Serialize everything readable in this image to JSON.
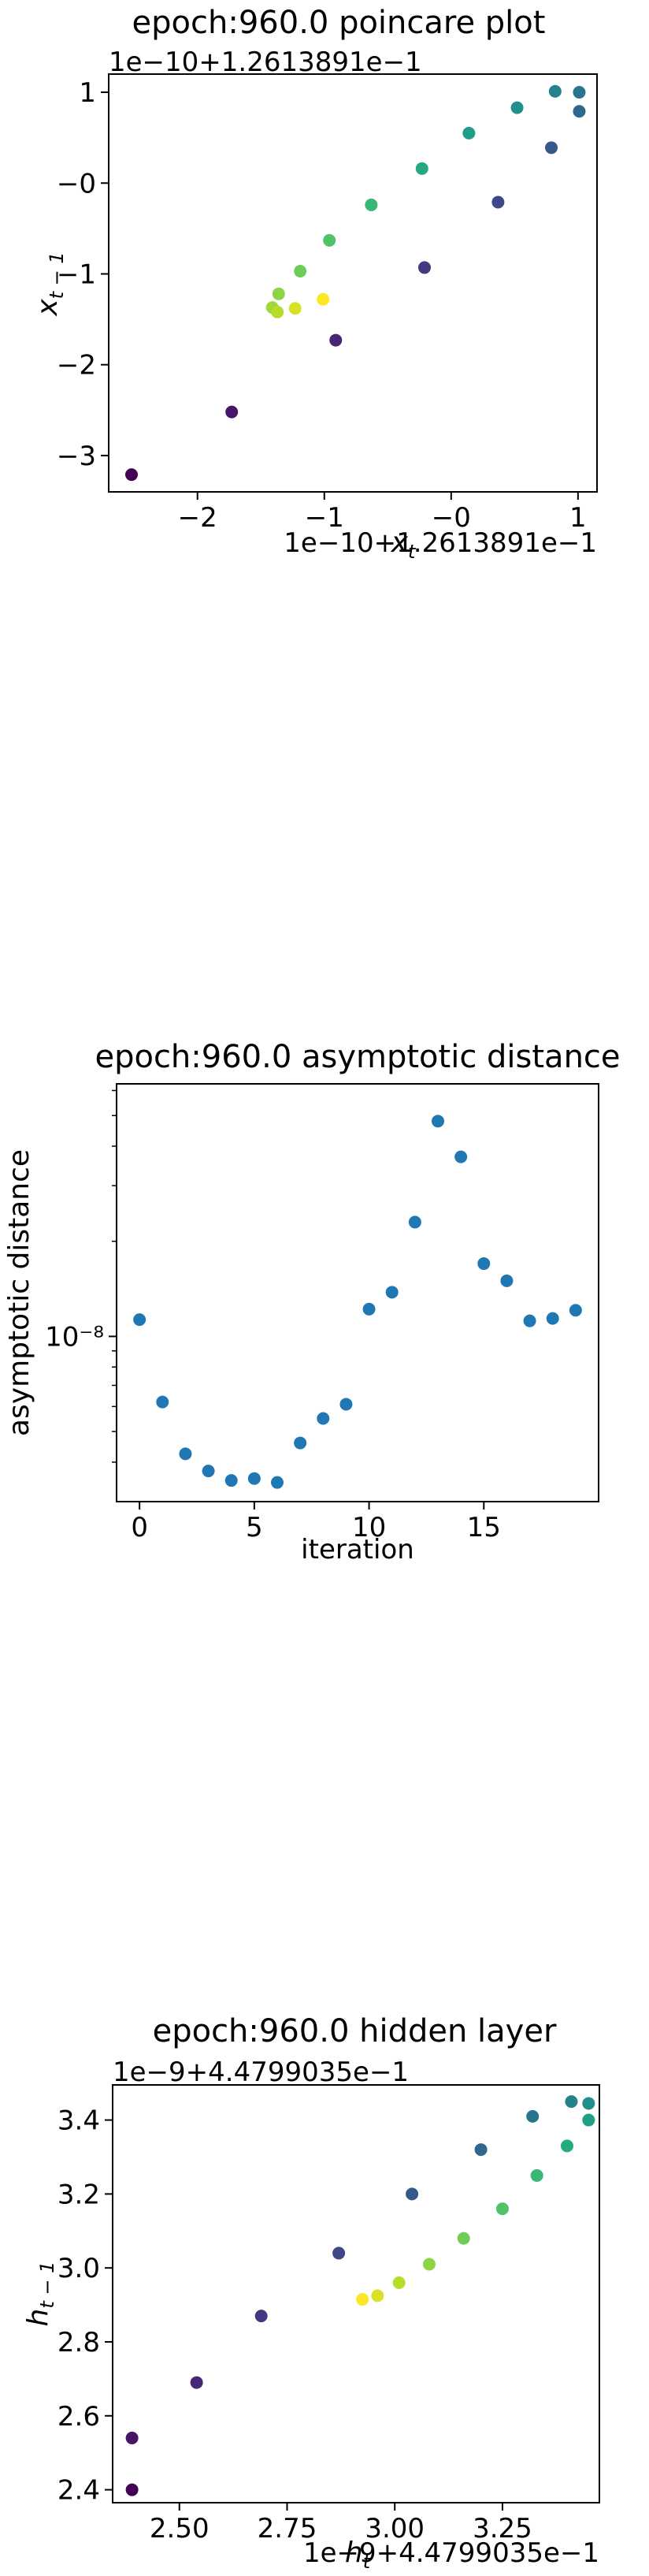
{
  "chart_data": [
    {
      "type": "scatter",
      "title": "epoch:960.0 poincare plot",
      "xlabel": "x_t",
      "ylabel": "x_{t-1}",
      "x_offset_label": "1e−10+1.2613891e−1",
      "y_offset_label": "1e−10+1.2613891e−1",
      "xlim": [
        -2.7,
        1.15
      ],
      "ylim": [
        -3.4,
        1.2
      ],
      "xticks": [
        -2,
        -1,
        0,
        1
      ],
      "xtick_labels": [
        "−2",
        "−1",
        "−0",
        "1"
      ],
      "yticks": [
        -3,
        -2,
        -1,
        0,
        1
      ],
      "ytick_labels": [
        "−3",
        "−2",
        "−1",
        "−0",
        "1"
      ],
      "colormap": "viridis",
      "grid": false,
      "points": [
        {
          "x": -2.52,
          "y": -3.21,
          "c": 0.0
        },
        {
          "x": -1.73,
          "y": -2.52,
          "c": 0.06
        },
        {
          "x": -0.91,
          "y": -1.73,
          "c": 0.11
        },
        {
          "x": -0.21,
          "y": -0.93,
          "c": 0.17
        },
        {
          "x": 0.37,
          "y": -0.21,
          "c": 0.22
        },
        {
          "x": 0.79,
          "y": 0.39,
          "c": 0.28
        },
        {
          "x": 1.01,
          "y": 0.79,
          "c": 0.33
        },
        {
          "x": 1.01,
          "y": 1.0,
          "c": 0.39
        },
        {
          "x": 0.82,
          "y": 1.01,
          "c": 0.44
        },
        {
          "x": 0.52,
          "y": 0.83,
          "c": 0.5
        },
        {
          "x": 0.14,
          "y": 0.55,
          "c": 0.56
        },
        {
          "x": -0.23,
          "y": 0.16,
          "c": 0.61
        },
        {
          "x": -0.63,
          "y": -0.24,
          "c": 0.67
        },
        {
          "x": -0.96,
          "y": -0.63,
          "c": 0.72
        },
        {
          "x": -1.19,
          "y": -0.97,
          "c": 0.78
        },
        {
          "x": -1.36,
          "y": -1.22,
          "c": 0.83
        },
        {
          "x": -1.41,
          "y": -1.37,
          "c": 0.86
        },
        {
          "x": -1.37,
          "y": -1.42,
          "c": 0.89
        },
        {
          "x": -1.23,
          "y": -1.38,
          "c": 0.94
        },
        {
          "x": -1.01,
          "y": -1.28,
          "c": 1.0
        }
      ]
    },
    {
      "type": "scatter",
      "title": "epoch:960.0 asymptotic distance",
      "xlabel": "iteration",
      "ylabel": "asymptotic distance",
      "yscale": "log",
      "xlim": [
        -1,
        20
      ],
      "ylim": [
        3e-09,
        6.3e-08
      ],
      "xticks": [
        0,
        5,
        10,
        15
      ],
      "xtick_labels": [
        "0",
        "5",
        "10",
        "15"
      ],
      "yticks": [
        1e-08
      ],
      "ytick_labels": [
        "10⁻⁸"
      ],
      "minor_yticks": [
        4e-09,
        5e-09,
        6e-09,
        7e-09,
        8e-09,
        9e-09,
        2e-08,
        3e-08,
        4e-08,
        5e-08,
        6e-08
      ],
      "color": "#1f77b4",
      "grid": false,
      "x": [
        0,
        1,
        2,
        3,
        4,
        5,
        6,
        7,
        8,
        9,
        10,
        11,
        12,
        13,
        14,
        15,
        16,
        17,
        18,
        19
      ],
      "y": [
        1.13e-08,
        6.2e-09,
        4.25e-09,
        3.75e-09,
        3.5e-09,
        3.55e-09,
        3.45e-09,
        4.6e-09,
        5.5e-09,
        6.1e-09,
        1.22e-08,
        1.38e-08,
        2.3e-08,
        4.8e-08,
        3.7e-08,
        1.7e-08,
        1.5e-08,
        1.12e-08,
        1.14e-08,
        1.21e-08
      ]
    },
    {
      "type": "scatter",
      "title": "epoch:960.0 hidden layer",
      "xlabel": "h_t",
      "ylabel": "h_{t-1}",
      "x_offset_label": "1e−9+4.4799035e−1",
      "y_offset_label": "1e−9+4.4799035e−1",
      "xlim": [
        2.345,
        3.475
      ],
      "ylim": [
        2.365,
        3.495
      ],
      "xticks": [
        2.5,
        2.75,
        3.0,
        3.25
      ],
      "xtick_labels": [
        "2.50",
        "2.75",
        "3.00",
        "3.25"
      ],
      "yticks": [
        2.4,
        2.6,
        2.8,
        3.0,
        3.2,
        3.4
      ],
      "ytick_labels": [
        "2.4",
        "2.6",
        "2.8",
        "3.0",
        "3.2",
        "3.4"
      ],
      "colormap": "viridis",
      "grid": false,
      "points": [
        {
          "x": 2.39,
          "y": 2.4,
          "c": 0.0
        },
        {
          "x": 2.39,
          "y": 2.54,
          "c": 0.06
        },
        {
          "x": 2.54,
          "y": 2.69,
          "c": 0.11
        },
        {
          "x": 2.69,
          "y": 2.87,
          "c": 0.17
        },
        {
          "x": 2.87,
          "y": 3.04,
          "c": 0.22
        },
        {
          "x": 3.04,
          "y": 3.2,
          "c": 0.28
        },
        {
          "x": 3.2,
          "y": 3.32,
          "c": 0.33
        },
        {
          "x": 3.32,
          "y": 3.41,
          "c": 0.39
        },
        {
          "x": 3.41,
          "y": 3.45,
          "c": 0.44
        },
        {
          "x": 3.45,
          "y": 3.445,
          "c": 0.5
        },
        {
          "x": 3.45,
          "y": 3.4,
          "c": 0.56
        },
        {
          "x": 3.4,
          "y": 3.33,
          "c": 0.61
        },
        {
          "x": 3.33,
          "y": 3.25,
          "c": 0.67
        },
        {
          "x": 3.25,
          "y": 3.16,
          "c": 0.72
        },
        {
          "x": 3.16,
          "y": 3.08,
          "c": 0.78
        },
        {
          "x": 3.08,
          "y": 3.01,
          "c": 0.83
        },
        {
          "x": 3.01,
          "y": 2.96,
          "c": 0.89
        },
        {
          "x": 2.96,
          "y": 2.925,
          "c": 0.94
        },
        {
          "x": 2.925,
          "y": 2.915,
          "c": 1.0
        }
      ]
    }
  ]
}
